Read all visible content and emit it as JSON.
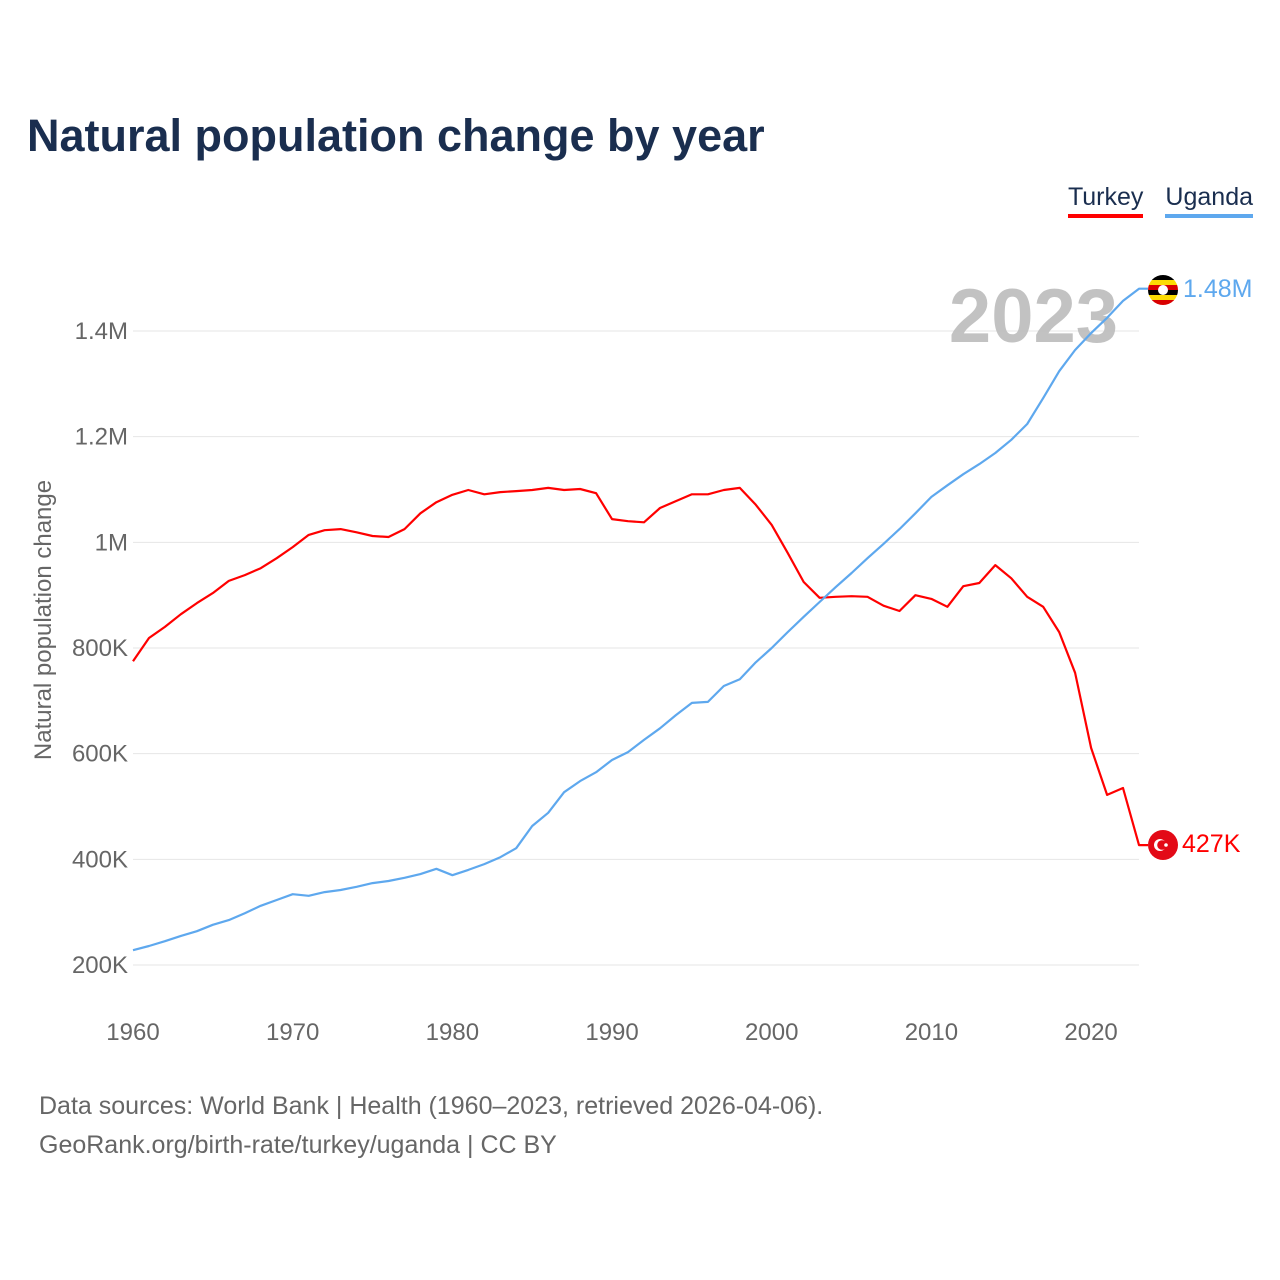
{
  "chart_data": {
    "type": "line",
    "title": "Natural population change by year",
    "xlabel": "",
    "ylabel": "Natural population change",
    "xlim": [
      1960,
      2023
    ],
    "ylim": [
      200000,
      1500000
    ],
    "x_ticks": [
      "1960",
      "1970",
      "1980",
      "1990",
      "2000",
      "2010",
      "2020"
    ],
    "y_ticks": [
      {
        "v": 200000,
        "label": "200K"
      },
      {
        "v": 400000,
        "label": "400K"
      },
      {
        "v": 600000,
        "label": "600K"
      },
      {
        "v": 800000,
        "label": "800K"
      },
      {
        "v": 1000000,
        "label": "1M"
      },
      {
        "v": 1200000,
        "label": "1.2M"
      },
      {
        "v": 1400000,
        "label": "1.4M"
      }
    ],
    "grid": true,
    "legend_placement": "top-right",
    "year_label": "2023",
    "x_start": 1960,
    "series": [
      {
        "name": "Turkey",
        "color": "#ff0000",
        "end_label": "427K",
        "values": [
          775000,
          819000,
          840000,
          864000,
          885000,
          904000,
          927000,
          938000,
          951000,
          970000,
          991000,
          1014000,
          1023000,
          1025000,
          1019000,
          1012000,
          1010000,
          1025000,
          1055000,
          1076000,
          1090000,
          1099000,
          1091000,
          1095000,
          1097000,
          1099000,
          1103000,
          1099000,
          1101000,
          1093000,
          1044000,
          1040000,
          1038000,
          1065000,
          1078000,
          1091000,
          1091000,
          1099000,
          1103000,
          1071000,
          1033000,
          980000,
          925000,
          895000,
          897000,
          898000,
          897000,
          880000,
          870000,
          900000,
          893000,
          878000,
          917000,
          923000,
          957000,
          932000,
          897000,
          878000,
          830000,
          753000,
          611000,
          522000,
          535000,
          427000
        ]
      },
      {
        "name": "Uganda",
        "color": "#5ea8ee",
        "end_label": "1.48M",
        "values": [
          228000,
          236000,
          245000,
          255000,
          264000,
          276000,
          285000,
          298000,
          312000,
          323000,
          334000,
          331000,
          338000,
          342000,
          348000,
          355000,
          359000,
          365000,
          372000,
          382000,
          370000,
          380000,
          391000,
          404000,
          421000,
          463000,
          488000,
          527000,
          548000,
          565000,
          588000,
          603000,
          626000,
          648000,
          673000,
          696000,
          698000,
          728000,
          741000,
          773000,
          800000,
          830000,
          859000,
          887000,
          915000,
          942000,
          970000,
          997000,
          1025000,
          1055000,
          1086000,
          1108000,
          1129000,
          1148000,
          1169000,
          1194000,
          1224000,
          1273000,
          1324000,
          1364000,
          1396000,
          1425000,
          1457000,
          1480000
        ]
      }
    ]
  },
  "footer": {
    "line1": "Data sources: World Bank | Health (1960–2023, retrieved 2026-04-06).",
    "line2": "GeoRank.org/birth-rate/turkey/uganda | CC BY"
  }
}
